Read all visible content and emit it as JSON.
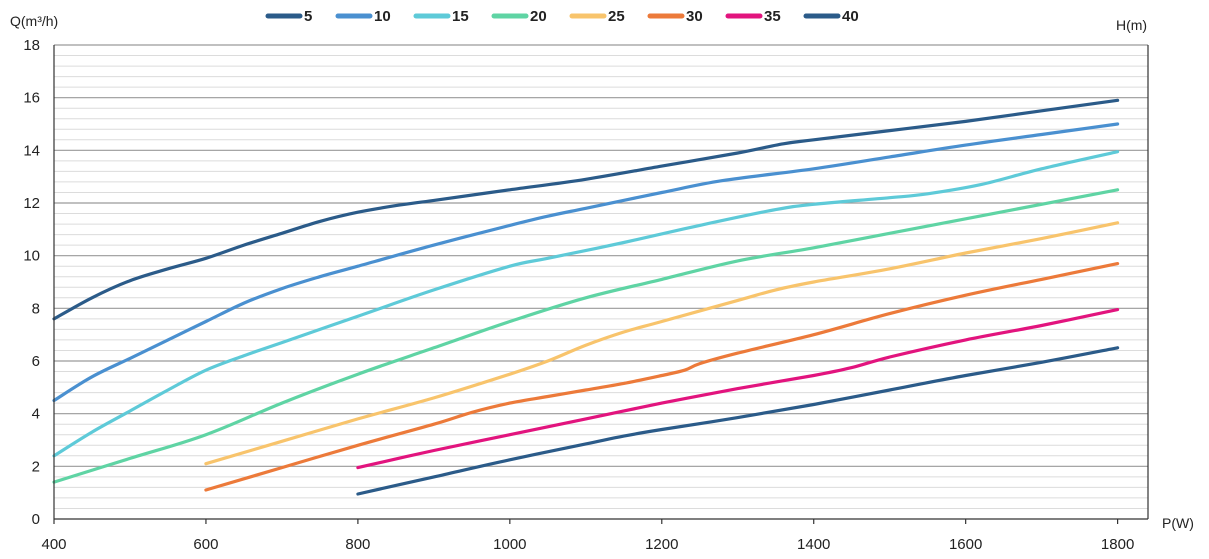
{
  "chart_data": {
    "type": "line",
    "xlabel": "P(W)",
    "ylabel": "Q(m³/h)",
    "right_label": "H(m)",
    "xlim": [
      400,
      1840
    ],
    "ylim": [
      0,
      18
    ],
    "xticks": [
      "400",
      "600",
      "800",
      "1000",
      "1200",
      "1400",
      "1600",
      "1800"
    ],
    "yticks": [
      "0",
      "2",
      "4",
      "6",
      "8",
      "10",
      "12",
      "14",
      "16",
      "18"
    ],
    "grid": true,
    "legend_placement": "top",
    "series": [
      {
        "name": "5",
        "color": "#2b5b89",
        "x": [
          400,
          450,
          500,
          550,
          600,
          650,
          700,
          750,
          800,
          850,
          900,
          1000,
          1100,
          1200,
          1300,
          1360,
          1400,
          1500,
          1600,
          1700,
          1800
        ],
        "y": [
          7.6,
          8.4,
          9.05,
          9.5,
          9.9,
          10.4,
          10.85,
          11.3,
          11.65,
          11.9,
          12.1,
          12.5,
          12.9,
          13.4,
          13.9,
          14.25,
          14.4,
          14.75,
          15.1,
          15.5,
          15.9
        ]
      },
      {
        "name": "10",
        "color": "#4a90d0",
        "x": [
          400,
          450,
          500,
          550,
          600,
          650,
          700,
          750,
          800,
          900,
          1000,
          1050,
          1100,
          1200,
          1280,
          1400,
          1500,
          1600,
          1700,
          1800
        ],
        "y": [
          4.5,
          5.4,
          6.1,
          6.8,
          7.5,
          8.2,
          8.75,
          9.2,
          9.6,
          10.4,
          11.15,
          11.5,
          11.8,
          12.4,
          12.85,
          13.3,
          13.75,
          14.2,
          14.6,
          15.0
        ]
      },
      {
        "name": "15",
        "color": "#5ecad8",
        "x": [
          400,
          450,
          500,
          550,
          600,
          650,
          700,
          800,
          900,
          1000,
          1050,
          1150,
          1250,
          1350,
          1400,
          1500,
          1550,
          1620,
          1700,
          1800
        ],
        "y": [
          2.4,
          3.3,
          4.1,
          4.9,
          5.65,
          6.2,
          6.7,
          7.7,
          8.7,
          9.6,
          9.9,
          10.5,
          11.15,
          11.75,
          11.95,
          12.2,
          12.35,
          12.7,
          13.3,
          13.95
        ]
      },
      {
        "name": "20",
        "color": "#5fd4a4",
        "x": [
          400,
          500,
          600,
          700,
          800,
          900,
          1000,
          1100,
          1200,
          1300,
          1400,
          1500,
          1600,
          1700,
          1800
        ],
        "y": [
          1.4,
          2.3,
          3.2,
          4.4,
          5.5,
          6.5,
          7.5,
          8.4,
          9.1,
          9.8,
          10.3,
          10.85,
          11.4,
          11.95,
          12.5
        ]
      },
      {
        "name": "25",
        "color": "#f8c46c",
        "x": [
          600,
          700,
          800,
          900,
          1000,
          1050,
          1100,
          1150,
          1200,
          1300,
          1350,
          1400,
          1500,
          1600,
          1700,
          1800
        ],
        "y": [
          2.1,
          2.95,
          3.8,
          4.6,
          5.5,
          6.0,
          6.6,
          7.1,
          7.5,
          8.3,
          8.7,
          9.0,
          9.5,
          10.1,
          10.65,
          11.25
        ]
      },
      {
        "name": "30",
        "color": "#ec7a3a",
        "x": [
          600,
          700,
          800,
          900,
          950,
          1000,
          1050,
          1100,
          1150,
          1200,
          1230,
          1250,
          1300,
          1400,
          1500,
          1600,
          1700,
          1800
        ],
        "y": [
          1.1,
          1.95,
          2.8,
          3.6,
          4.05,
          4.4,
          4.65,
          4.9,
          5.15,
          5.45,
          5.65,
          5.9,
          6.3,
          7.0,
          7.8,
          8.5,
          9.1,
          9.7
        ]
      },
      {
        "name": "35",
        "color": "#e2147e",
        "x": [
          800,
          900,
          1000,
          1100,
          1200,
          1300,
          1400,
          1450,
          1500,
          1600,
          1700,
          1800
        ],
        "y": [
          1.95,
          2.6,
          3.2,
          3.8,
          4.4,
          4.95,
          5.45,
          5.75,
          6.15,
          6.8,
          7.35,
          7.95
        ]
      },
      {
        "name": "40",
        "color": "#2b5b89",
        "x": [
          800,
          900,
          1000,
          1100,
          1150,
          1200,
          1300,
          1400,
          1500,
          1600,
          1700,
          1800
        ],
        "y": [
          0.95,
          1.6,
          2.25,
          2.85,
          3.15,
          3.4,
          3.85,
          4.35,
          4.9,
          5.45,
          5.95,
          6.5
        ]
      }
    ]
  }
}
